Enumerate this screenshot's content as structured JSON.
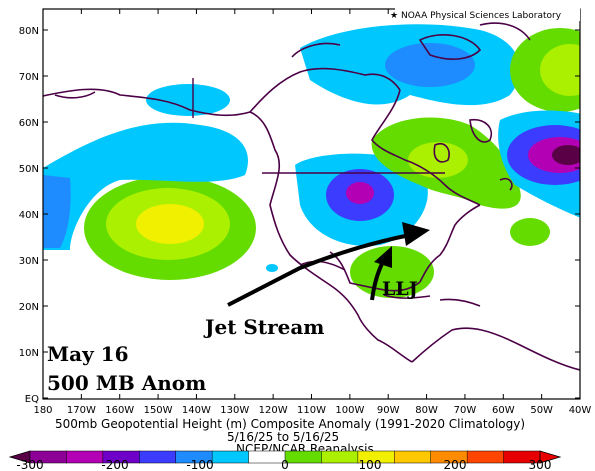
{
  "credit": "NOAA Physical Sciences Laboratory",
  "lat_labels": [
    "80N",
    "70N",
    "60N",
    "50N",
    "40N",
    "30N",
    "20N",
    "10N",
    "EQ"
  ],
  "lon_labels": [
    "180",
    "170W",
    "160W",
    "150W",
    "140W",
    "130W",
    "120W",
    "110W",
    "100W",
    "90W",
    "80W",
    "70W",
    "60W",
    "50W",
    "40W"
  ],
  "caption": {
    "line1": "500mb Geopotential Height (m) Composite Anomaly (1991-2020 Climatology)",
    "line2": "5/16/25 to 5/16/25",
    "line3": "NCEP/NCAR Reanalysis"
  },
  "annotations": {
    "llj": "LLJ",
    "jet": "Jet Stream",
    "date": "May 16",
    "level": "500 MB Anom"
  },
  "colorbar": {
    "ticks": [
      "-300",
      "-200",
      "-100",
      "0",
      "100",
      "200",
      "300"
    ],
    "colors": [
      "#8c0096",
      "#b400b4",
      "#6e00c8",
      "#3c3cff",
      "#1e8cff",
      "#00c8ff",
      "#ffffff",
      "#64dc00",
      "#aaf000",
      "#f0f000",
      "#ffc800",
      "#ff8c00",
      "#ff4600",
      "#e60000"
    ]
  },
  "anomaly_palette": {
    "deep_negative": "#5a0046",
    "strong_negative": "#b400b4",
    "moderate_negative": "#3c3cff",
    "weak_negative": "#00c8ff",
    "weak_positive": "#64dc00",
    "moderate_positive": "#aaf000",
    "strong_positive": "#f0f000"
  },
  "coastline_color": "#4b0046"
}
